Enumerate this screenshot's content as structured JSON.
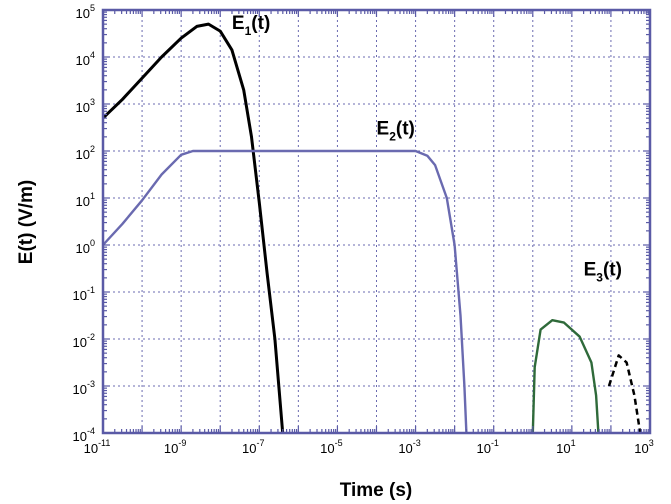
{
  "chart_data": {
    "type": "line",
    "xlabel": "Time (s)",
    "ylabel": "E(t)  (V/m)",
    "xscale": "log",
    "yscale": "log",
    "xlim_exp": [
      -11,
      3
    ],
    "ylim_exp": [
      -4,
      5
    ],
    "grid": true,
    "x_ticks": [
      {
        "base": "10",
        "exp": "-11",
        "value": -11
      },
      {
        "base": "10",
        "exp": "-9",
        "value": -9
      },
      {
        "base": "10",
        "exp": "-7",
        "value": -7
      },
      {
        "base": "10",
        "exp": "-5",
        "value": -5
      },
      {
        "base": "10",
        "exp": "-3",
        "value": -3
      },
      {
        "base": "10",
        "exp": "-1",
        "value": -1
      },
      {
        "base": "10",
        "exp": "1",
        "value": 1
      },
      {
        "base": "10",
        "exp": "3",
        "value": 3
      }
    ],
    "y_ticks": [
      {
        "base": "10",
        "exp": "-4",
        "value": -4
      },
      {
        "base": "10",
        "exp": "-3",
        "value": -3
      },
      {
        "base": "10",
        "exp": "-2",
        "value": -2
      },
      {
        "base": "10",
        "exp": "-1",
        "value": -1
      },
      {
        "base": "10",
        "exp": "0",
        "value": 0
      },
      {
        "base": "10",
        "exp": "1",
        "value": 1
      },
      {
        "base": "10",
        "exp": "2",
        "value": 2
      },
      {
        "base": "10",
        "exp": "3",
        "value": 3
      },
      {
        "base": "10",
        "exp": "4",
        "value": 4
      },
      {
        "base": "10",
        "exp": "5",
        "value": 5
      }
    ],
    "series": [
      {
        "label_main": "E",
        "label_sub": "1",
        "label_tail": "(t)",
        "color": "#000000",
        "dashed": false,
        "points": [
          [
            -11,
            2.7
          ],
          [
            -10.5,
            3.1
          ],
          [
            -10,
            3.55
          ],
          [
            -9.5,
            4.0
          ],
          [
            -9,
            4.4
          ],
          [
            -8.6,
            4.65
          ],
          [
            -8.3,
            4.7
          ],
          [
            -8,
            4.55
          ],
          [
            -7.7,
            4.15
          ],
          [
            -7.4,
            3.3
          ],
          [
            -7.2,
            2.3
          ],
          [
            -7,
            0.9
          ],
          [
            -6.8,
            -0.6
          ],
          [
            -6.6,
            -2.0
          ],
          [
            -6.5,
            -3.0
          ],
          [
            -6.4,
            -4.0
          ]
        ]
      },
      {
        "label_main": "E",
        "label_sub": "2",
        "label_tail": "(t)",
        "color": "#6a6ab0",
        "dashed": false,
        "points": [
          [
            -11,
            0.0
          ],
          [
            -10.5,
            0.45
          ],
          [
            -10,
            0.95
          ],
          [
            -9.5,
            1.5
          ],
          [
            -9,
            1.92
          ],
          [
            -8.7,
            2.0
          ],
          [
            -3,
            2.0
          ],
          [
            -2.7,
            1.9
          ],
          [
            -2.5,
            1.7
          ],
          [
            -2.2,
            1.0
          ],
          [
            -2.0,
            0.0
          ],
          [
            -1.85,
            -1.5
          ],
          [
            -1.75,
            -3.0
          ],
          [
            -1.7,
            -4.0
          ]
        ]
      },
      {
        "label_main": "E",
        "label_sub": "3",
        "label_tail": "(t)",
        "color": "#2f6a3a",
        "dashed": false,
        "points": [
          [
            0,
            -4.0
          ],
          [
            0.05,
            -2.6
          ],
          [
            0.2,
            -1.8
          ],
          [
            0.5,
            -1.6
          ],
          [
            0.8,
            -1.65
          ],
          [
            1.2,
            -1.95
          ],
          [
            1.5,
            -2.5
          ],
          [
            1.62,
            -3.2
          ],
          [
            1.68,
            -4.0
          ]
        ]
      },
      {
        "label_main": "",
        "label_sub": "",
        "label_tail": "",
        "color": "#000000",
        "dashed": true,
        "points": [
          [
            1.95,
            -3.0
          ],
          [
            2.2,
            -2.35
          ],
          [
            2.4,
            -2.5
          ],
          [
            2.6,
            -3.2
          ],
          [
            2.75,
            -4.0
          ]
        ]
      }
    ],
    "label_positions": [
      {
        "x": -7.7,
        "y": 4.6
      },
      {
        "x": -4.0,
        "y": 2.35
      },
      {
        "x": 1.3,
        "y": -0.65
      }
    ]
  }
}
